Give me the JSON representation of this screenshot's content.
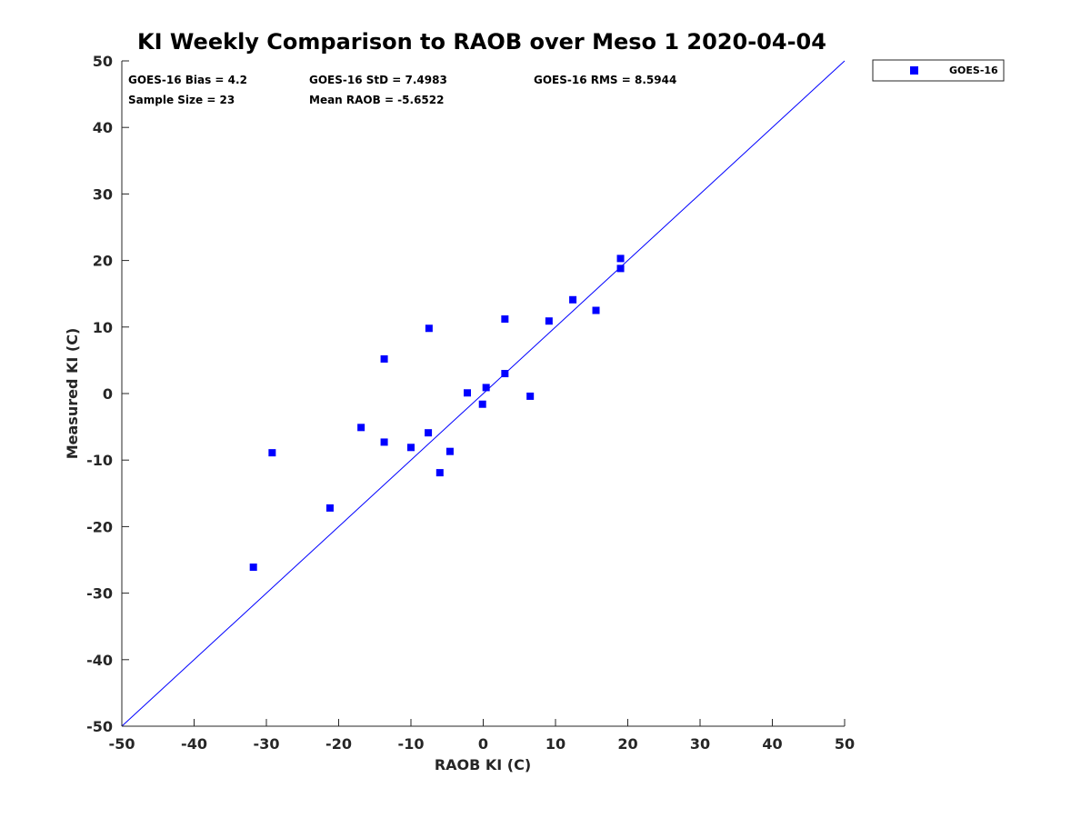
{
  "chart_data": {
    "type": "scatter",
    "title": "KI Weekly Comparison to RAOB over Meso 1 2020-04-04",
    "xlabel": "RAOB KI (C)",
    "ylabel": "Measured KI (C)",
    "xlim": [
      -50,
      50
    ],
    "ylim": [
      -50,
      50
    ],
    "xticks": [
      -50,
      -40,
      -30,
      -20,
      -10,
      0,
      10,
      20,
      30,
      40,
      50
    ],
    "yticks": [
      -50,
      -40,
      -30,
      -20,
      -10,
      0,
      10,
      20,
      30,
      40,
      50
    ],
    "grid": false,
    "legend_position": "outside-top-right",
    "reference_line": {
      "type": "one-to-one",
      "color": "#0000ff"
    },
    "stats": {
      "bias": "GOES-16 Bias = 4.2",
      "std": "GOES-16 StD = 7.4983",
      "rms": "GOES-16 RMS = 8.5944",
      "sample_size": "Sample Size = 23",
      "mean_raob": "Mean RAOB = -5.6522"
    },
    "series": [
      {
        "name": "GOES-16",
        "color": "#0000ff",
        "marker": "square",
        "points": [
          [
            -31.8,
            -26.1
          ],
          [
            -29.2,
            -8.9
          ],
          [
            -21.2,
            -17.2
          ],
          [
            -16.9,
            -5.1
          ],
          [
            -13.7,
            5.2
          ],
          [
            -13.7,
            -7.3
          ],
          [
            -10.0,
            -8.1
          ],
          [
            -7.5,
            9.8
          ],
          [
            -7.6,
            -5.9
          ],
          [
            -6.0,
            -11.9
          ],
          [
            -4.6,
            -8.7
          ],
          [
            -2.2,
            0.1
          ],
          [
            -0.1,
            -1.6
          ],
          [
            0.4,
            0.9
          ],
          [
            3.0,
            11.2
          ],
          [
            3.0,
            3.0
          ],
          [
            6.5,
            -0.4
          ],
          [
            9.1,
            10.9
          ],
          [
            12.4,
            14.1
          ],
          [
            15.6,
            12.5
          ],
          [
            19.0,
            20.3
          ],
          [
            19.0,
            18.8
          ]
        ]
      }
    ]
  }
}
